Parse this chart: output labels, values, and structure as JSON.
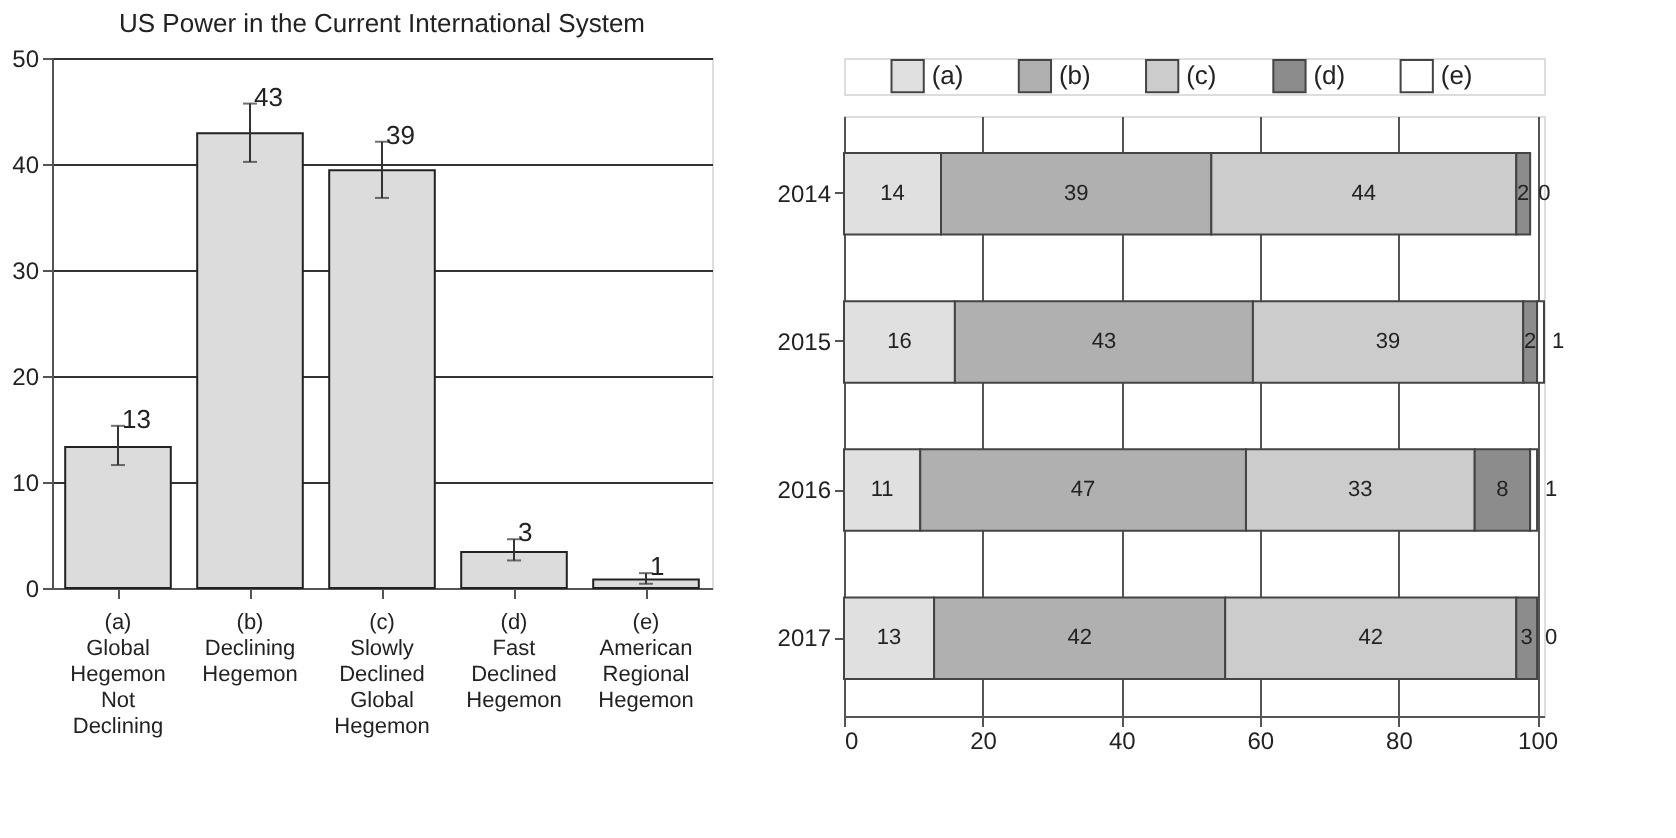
{
  "chart_data": [
    {
      "type": "bar",
      "title": "US Power in the Current International System",
      "categories": [
        "(a)\nGlobal\nHegemon\nNot\nDeclining",
        "(b)\nDeclining\nHegemon",
        "(c)\nSlowly\nDeclined\nGlobal\nHegemon",
        "(d)\nFast\nDeclined\nHegemon",
        "(e)\nAmerican\nRegional\nHegemon"
      ],
      "values": [
        13.3,
        42.9,
        39.4,
        3.4,
        0.8
      ],
      "value_labels": [
        "13",
        "43",
        "39",
        "3",
        "1"
      ],
      "errors": [
        [
          11.6,
          15.3
        ],
        [
          40.2,
          45.7
        ],
        [
          36.8,
          42.1
        ],
        [
          2.6,
          4.6
        ],
        [
          0.4,
          1.4
        ]
      ],
      "color": "#dcdcdc",
      "ylim": [
        0,
        50
      ],
      "yticks": [
        0,
        10,
        20,
        30,
        40,
        50
      ],
      "grid": "y"
    },
    {
      "type": "bar",
      "orientation": "horizontal",
      "stacked": true,
      "data_labels": true,
      "categories": [
        "2014",
        "2015",
        "2016",
        "2017"
      ],
      "series": [
        {
          "name": "(a)",
          "color": "#e0e0e0",
          "values": [
            14,
            16,
            11,
            13
          ]
        },
        {
          "name": "(b)",
          "color": "#b0b0b0",
          "values": [
            39,
            43,
            47,
            42
          ]
        },
        {
          "name": "(c)",
          "color": "#cccccc",
          "values": [
            44,
            39,
            33,
            42
          ]
        },
        {
          "name": "(d)",
          "color": "#8c8c8c",
          "values": [
            2,
            2,
            8,
            3
          ]
        },
        {
          "name": "(e)",
          "color": "#ffffff",
          "values": [
            0,
            1,
            1,
            0
          ]
        }
      ],
      "xlim": [
        0,
        101
      ],
      "xticks": [
        0,
        20,
        40,
        60,
        80,
        100
      ],
      "grid": "x",
      "legend": "top"
    }
  ]
}
